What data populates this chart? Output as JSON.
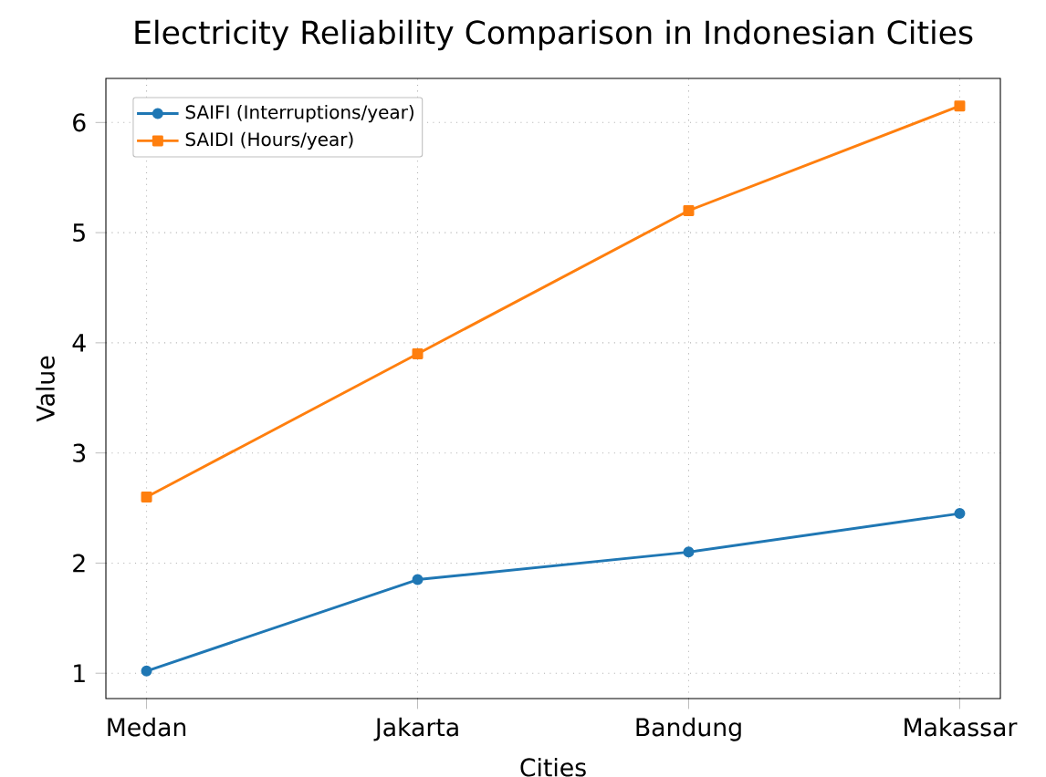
{
  "chart_data": {
    "type": "line",
    "title": "Electricity Reliability Comparison in Indonesian Cities",
    "xlabel": "Cities",
    "ylabel": "Value",
    "categories": [
      "Medan",
      "Jakarta",
      "Bandung",
      "Makassar"
    ],
    "series": [
      {
        "name": "SAIFI (Interruptions/year)",
        "color": "#1f77b4",
        "marker": "circle",
        "values": [
          1.02,
          1.85,
          2.1,
          2.45
        ]
      },
      {
        "name": "SAIDI (Hours/year)",
        "color": "#ff7f0e",
        "marker": "square",
        "values": [
          2.6,
          3.9,
          5.2,
          6.15
        ]
      }
    ],
    "ylim": [
      0.77,
      6.4
    ],
    "yticks": [
      1,
      2,
      3,
      4,
      5,
      6
    ],
    "grid": true,
    "legend": "top left",
    "line_style": "solid"
  }
}
